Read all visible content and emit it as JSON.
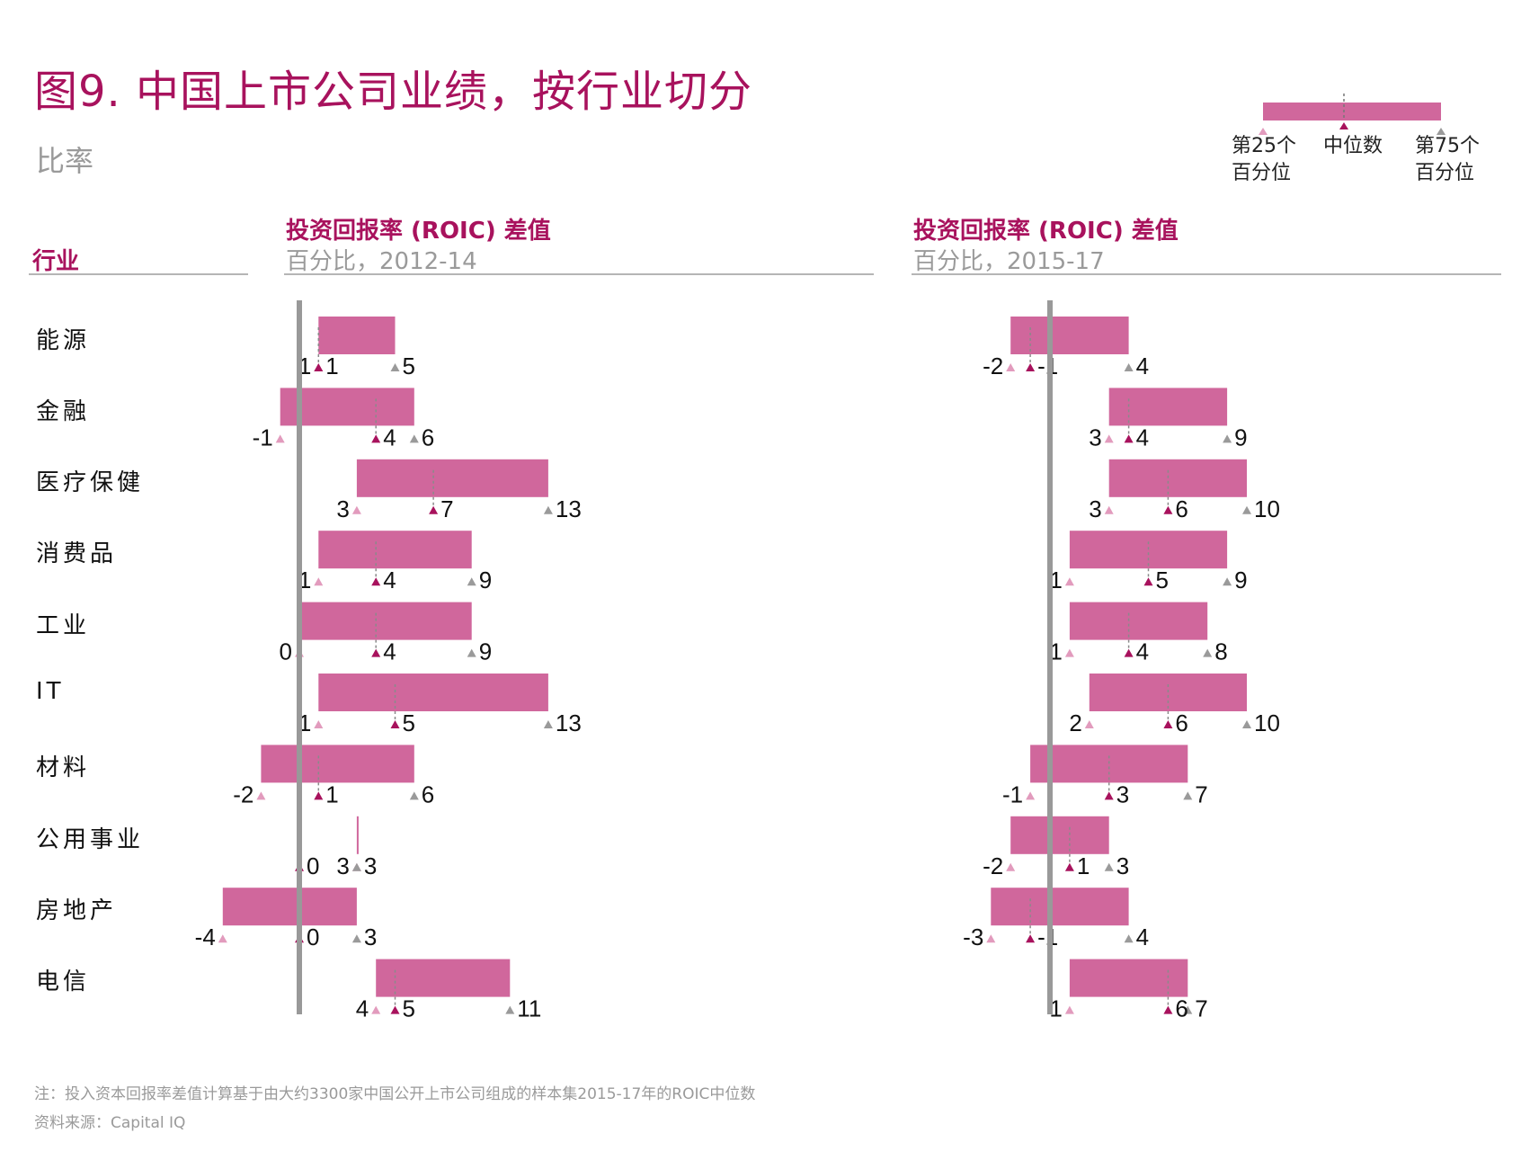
{
  "page": {
    "title": "图9. 中国上市公司业绩，按行业切分",
    "subtitle": "比率",
    "industry_header": "行业",
    "note": "注：投入资本回报率差值计算基于由大约3300家中国公开上市公司组成的样本集2015-17年的ROIC中位数",
    "source": "资料来源：Capital IQ"
  },
  "legend": {
    "p25_label_line1": "第25个",
    "p25_label_line2": "百分位",
    "median_label": "中位数",
    "p75_label_line1": "第75个",
    "p75_label_line2": "百分位"
  },
  "colors": {
    "bar": "#d0679c",
    "title": "#a8125d",
    "p25_marker": "#e29bbd",
    "median_marker": "#a8125d",
    "p75_marker": "#9a9a9a",
    "zero_line": "#999999"
  },
  "panels": [
    {
      "title": "投资回报率 (ROIC) 差值",
      "subtitle": "百分比，2012-14"
    },
    {
      "title": "投资回报率 (ROIC) 差值",
      "subtitle": "百分比，2015-17"
    }
  ],
  "chart_data": [
    {
      "type": "boxplot",
      "title": "投资回报率 (ROIC) 差值",
      "subtitle": "百分比，2012-14",
      "categories": [
        "能源",
        "金融",
        "医疗保健",
        "消费品",
        "工业",
        "IT",
        "材料",
        "公用事业",
        "房地产",
        "电信"
      ],
      "p25": [
        1,
        -1,
        3,
        1,
        0,
        1,
        -2,
        3,
        -4,
        4
      ],
      "median": [
        1,
        4,
        7,
        4,
        4,
        5,
        1,
        0,
        0,
        5
      ],
      "p75": [
        5,
        6,
        13,
        9,
        9,
        13,
        6,
        3,
        3,
        11
      ],
      "p25_labels": [
        "1",
        "-1",
        "3",
        "1",
        "0",
        "1",
        "-2",
        "3",
        "-4",
        "4"
      ],
      "median_labels": [
        "1",
        "4",
        "7",
        "4",
        "4",
        "5",
        "1",
        "0",
        "0",
        "5"
      ],
      "p75_labels": [
        "5",
        "6",
        "13",
        "9",
        "9",
        "13",
        "6",
        "3",
        "3",
        "11"
      ]
    },
    {
      "type": "boxplot",
      "title": "投资回报率 (ROIC) 差值",
      "subtitle": "百分比，2015-17",
      "categories": [
        "能源",
        "金融",
        "医疗保健",
        "消费品",
        "工业",
        "IT",
        "材料",
        "公用事业",
        "房地产",
        "电信"
      ],
      "p25": [
        -2,
        3,
        3,
        1,
        1,
        2,
        -1,
        -2,
        -3,
        1
      ],
      "median": [
        -1,
        4,
        6,
        5,
        4,
        6,
        3,
        1,
        -1,
        6
      ],
      "p75": [
        4,
        9,
        10,
        9,
        8,
        10,
        7,
        3,
        4,
        7
      ],
      "p25_labels": [
        "-2",
        "3",
        "3",
        "1",
        "1",
        "2",
        "-1",
        "-2",
        "-3",
        "1"
      ],
      "median_labels": [
        "-1",
        "4",
        "6",
        "5",
        "4",
        "6",
        "3",
        "1",
        "-1",
        "6"
      ],
      "p75_labels": [
        "4",
        "9",
        "10",
        "9",
        "8",
        "10",
        "7",
        "3",
        "4",
        "7"
      ]
    }
  ]
}
